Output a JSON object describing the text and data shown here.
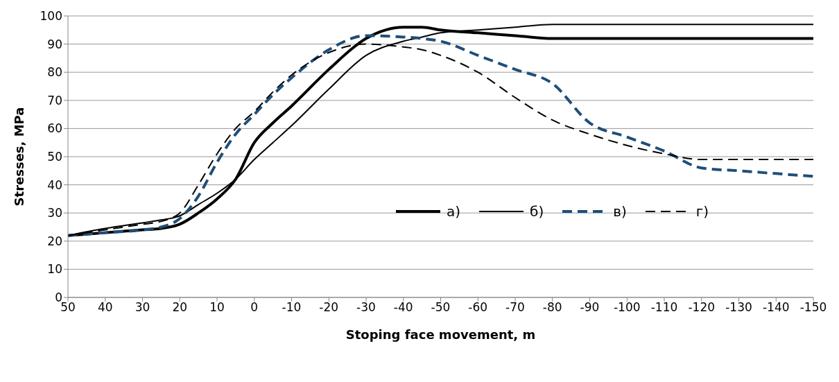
{
  "chart_data": {
    "type": "line",
    "xlabel": "Stoping face movement, m",
    "ylabel": "Stresses, MPa",
    "x": [
      50,
      40,
      30,
      25,
      20,
      15,
      10,
      5,
      0,
      -5,
      -10,
      -20,
      -30,
      -40,
      -45,
      -50,
      -60,
      -70,
      -80,
      -90,
      -100,
      -110,
      -120,
      -130,
      -140,
      -150
    ],
    "series": [
      {
        "name": "а)",
        "color": "#000000",
        "line_style": "solid",
        "values": [
          22,
          23,
          24,
          24.5,
          26,
          30,
          35,
          42,
          55,
          62,
          68,
          81,
          92,
          96,
          96,
          95,
          94,
          93,
          92,
          92,
          92,
          92,
          92,
          92,
          92,
          92
        ]
      },
      {
        "name": "б)",
        "color": "#000000",
        "line_style": "solid",
        "values": [
          22,
          24.5,
          26.5,
          27.5,
          29,
          33,
          37,
          42,
          49,
          55,
          61,
          74,
          86,
          91,
          92.5,
          94,
          95,
          96,
          97,
          97,
          97,
          97,
          97,
          97,
          97,
          97
        ]
      },
      {
        "name": "в)",
        "color": "#1f4e79",
        "line_style": "dashed",
        "values": [
          22,
          23,
          24,
          25,
          28,
          36,
          48,
          58,
          65,
          72,
          78,
          88,
          93,
          92.5,
          92,
          91,
          86,
          81,
          76,
          62,
          57,
          52,
          46,
          45,
          44,
          43
        ]
      },
      {
        "name": "г)",
        "color": "#000000",
        "line_style": "dashed",
        "values": [
          22,
          24,
          26,
          27,
          30,
          40,
          51,
          60,
          66,
          73,
          79,
          87,
          90,
          89,
          88,
          86,
          80,
          71,
          63,
          58,
          54,
          51,
          49,
          49,
          49,
          49
        ]
      }
    ],
    "xlim": [
      50,
      -150
    ],
    "xticks": [
      50,
      40,
      30,
      20,
      10,
      0,
      -10,
      -20,
      -30,
      -40,
      -50,
      -60,
      -70,
      -80,
      -90,
      -100,
      -110,
      -120,
      -130,
      -140,
      -150
    ],
    "ylim": [
      0,
      100
    ],
    "yticks": [
      0,
      10,
      20,
      30,
      40,
      50,
      60,
      70,
      80,
      90,
      100
    ],
    "grid": "y",
    "legend": "right",
    "marker": "none"
  }
}
